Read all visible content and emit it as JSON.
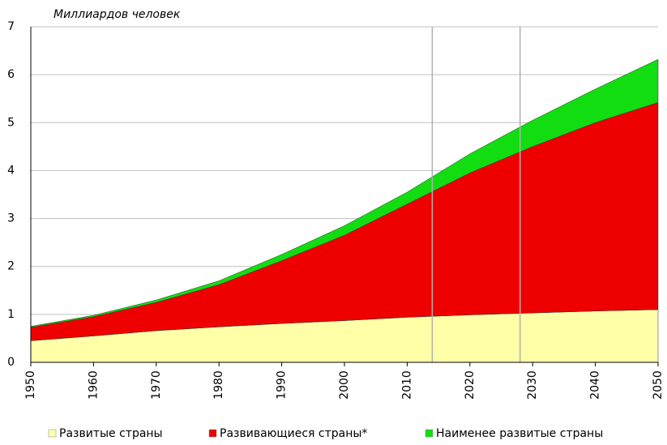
{
  "chart_data": {
    "type": "stacked_area",
    "title": "Миллиардов человек",
    "x": [
      1950,
      1960,
      1970,
      1980,
      1990,
      2000,
      2010,
      2020,
      2030,
      2040,
      2050
    ],
    "series": [
      {
        "name": "Развитые страны",
        "color": "#ffffa8",
        "values": [
          0.45,
          0.55,
          0.66,
          0.74,
          0.81,
          0.87,
          0.94,
          0.99,
          1.03,
          1.07,
          1.1
        ]
      },
      {
        "name": "Развивающиеся страны*",
        "color": "#ee0000",
        "values": [
          0.28,
          0.4,
          0.59,
          0.88,
          1.31,
          1.78,
          2.36,
          2.96,
          3.47,
          3.93,
          4.32
        ]
      },
      {
        "name": "Наименее развитые страны",
        "color": "#11dd11",
        "values": [
          0.02,
          0.03,
          0.05,
          0.08,
          0.13,
          0.2,
          0.25,
          0.4,
          0.55,
          0.7,
          0.9
        ]
      }
    ],
    "vlines": [
      2014,
      2028
    ],
    "xlim": [
      1950,
      2050
    ],
    "xticks": [
      1950,
      1960,
      1970,
      1980,
      1990,
      2000,
      2010,
      2020,
      2030,
      2040,
      2050
    ],
    "ylim": [
      0,
      7
    ],
    "yticks": [
      0,
      1,
      2,
      3,
      4,
      5,
      6,
      7
    ],
    "grid": true,
    "legend": "bottom"
  }
}
